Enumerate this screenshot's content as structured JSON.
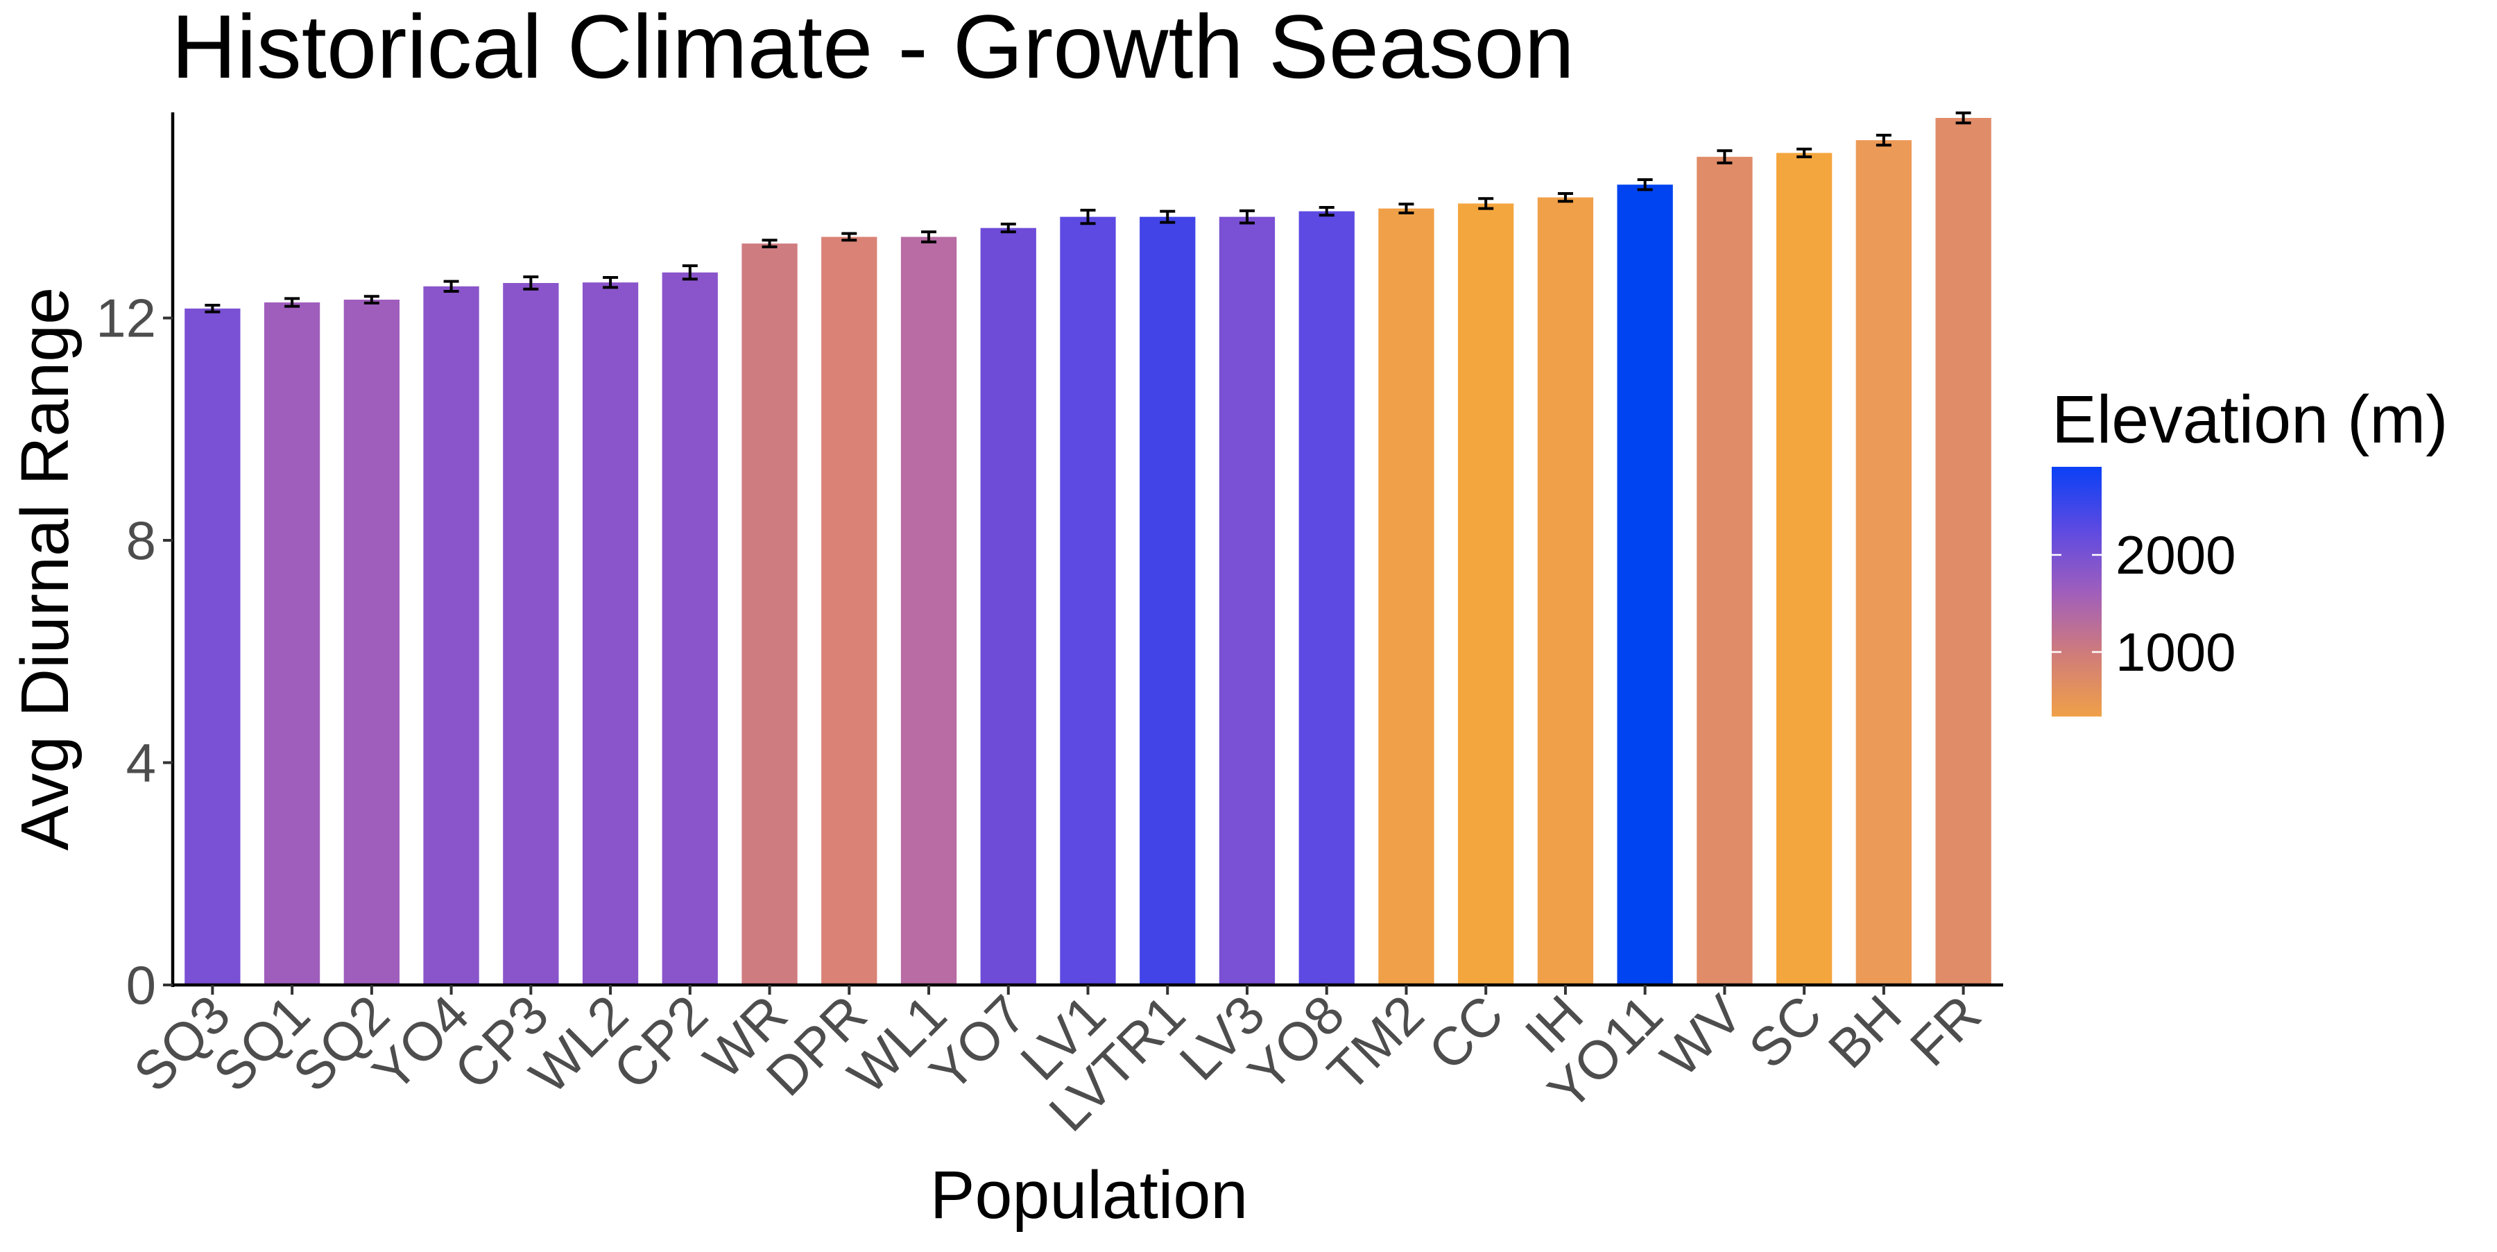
{
  "chart_data": {
    "type": "bar",
    "title": "Historical Climate - Growth Season",
    "xlabel": "Population",
    "ylabel": "Avg Diurnal Range",
    "ylim": [
      0,
      15.7
    ],
    "yticks": [
      0,
      4,
      8,
      12
    ],
    "grid": false,
    "legend_position": "right",
    "categories": [
      "SQ3",
      "SQ1",
      "SQ2",
      "YO4",
      "CP3",
      "WL2",
      "CP2",
      "WR",
      "DPR",
      "WL1",
      "YO7",
      "LV1",
      "LVTR1",
      "LV3",
      "YO8",
      "TM2",
      "CC",
      "IH",
      "YO11",
      "WV",
      "SC",
      "BH",
      "FR"
    ],
    "values": [
      12.17,
      12.28,
      12.33,
      12.57,
      12.63,
      12.64,
      12.82,
      13.34,
      13.46,
      13.46,
      13.62,
      13.82,
      13.82,
      13.82,
      13.92,
      13.97,
      14.06,
      14.17,
      14.4,
      14.9,
      14.97,
      15.2,
      15.6
    ],
    "error": [
      0.06,
      0.07,
      0.06,
      0.09,
      0.11,
      0.09,
      0.12,
      0.06,
      0.06,
      0.09,
      0.07,
      0.12,
      0.1,
      0.11,
      0.07,
      0.08,
      0.09,
      0.07,
      0.09,
      0.11,
      0.07,
      0.09,
      0.09
    ],
    "colors": [
      "#7a50d4",
      "#9f5ebc",
      "#9f5ebc",
      "#8a55cb",
      "#8a55cb",
      "#8a55cb",
      "#8a55cb",
      "#cf7c80",
      "#da8276",
      "#b86ca3",
      "#6e4cd8",
      "#5c4ae2",
      "#4244e8",
      "#7a50d4",
      "#5c4ae2",
      "#f0a048",
      "#f4a63e",
      "#f0a048",
      "#0043f0",
      "#e08c68",
      "#f4a63e",
      "#ec9a58",
      "#e08c68"
    ],
    "color_scale": {
      "title": "Elevation (m)",
      "ticks": [
        "2000",
        "1000"
      ],
      "colors": [
        "#0a40f5",
        "#5c4ae2",
        "#9f5ebc",
        "#d07c7a",
        "#f0a048"
      ]
    }
  }
}
